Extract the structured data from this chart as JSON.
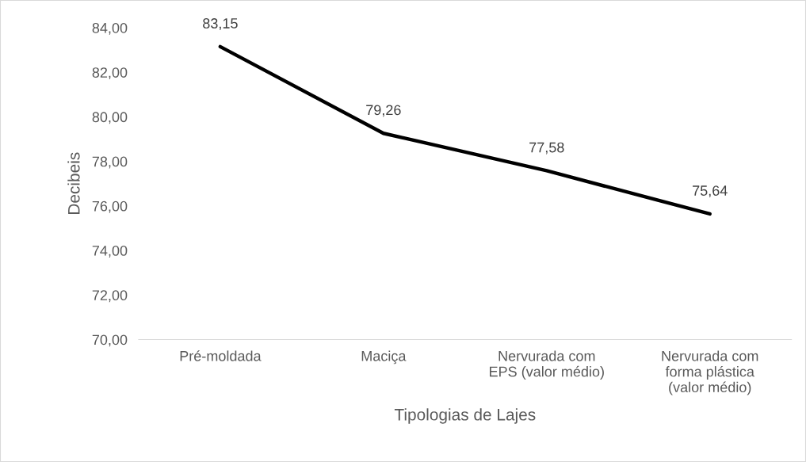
{
  "chart_data": {
    "type": "line",
    "xlabel": "Tipologias de Lajes",
    "ylabel": "Decibeis",
    "categories": [
      "Pré-moldada",
      "Maciça",
      "Nervurada com\nEPS (valor médio)",
      "Nervurada com\nforma plástica\n(valor médio)"
    ],
    "series": [
      {
        "color": "#000000",
        "values": [
          83.15,
          79.26,
          77.58,
          75.64
        ],
        "value_labels": [
          "83,15",
          "79,26",
          "77,58",
          "75,64"
        ]
      }
    ],
    "ylim": [
      70,
      84
    ],
    "yticks": [
      {
        "value": 70,
        "label": "70,00"
      },
      {
        "value": 72,
        "label": "72,00"
      },
      {
        "value": 74,
        "label": "74,00"
      },
      {
        "value": 76,
        "label": "76,00"
      },
      {
        "value": 78,
        "label": "78,00"
      },
      {
        "value": 80,
        "label": "80,00"
      },
      {
        "value": 82,
        "label": "82,00"
      },
      {
        "value": 84,
        "label": "84,00"
      }
    ],
    "grid": false,
    "legend": false,
    "marker": "none",
    "line_style": "solid"
  }
}
